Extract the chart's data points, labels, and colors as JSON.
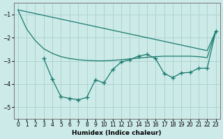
{
  "xlabel": "Humidex (Indice chaleur)",
  "bg_color": "#cceae8",
  "grid_color": "#aed4d0",
  "line_color": "#1a7a6e",
  "xlim": [
    -0.5,
    23.5
  ],
  "ylim": [
    -5.5,
    -0.5
  ],
  "yticks": [
    -5,
    -4,
    -3,
    -2,
    -1
  ],
  "xticks": [
    0,
    1,
    2,
    3,
    4,
    5,
    6,
    7,
    8,
    9,
    10,
    11,
    12,
    13,
    14,
    15,
    16,
    17,
    18,
    19,
    20,
    21,
    22,
    23
  ],
  "line_straight_x": [
    0,
    1,
    2,
    3,
    4,
    5,
    6,
    7,
    8,
    9,
    10,
    11,
    12,
    13,
    14,
    15,
    16,
    17,
    18,
    19,
    20,
    21,
    22,
    23
  ],
  "line_smooth_x": [
    0,
    1,
    2,
    3,
    4,
    5,
    6,
    7,
    8,
    9,
    10,
    11,
    12,
    13,
    14,
    15,
    16,
    17,
    18,
    19,
    20,
    21,
    22,
    23
  ],
  "line_smooth_y": [
    -0.8,
    -1.62,
    -2.12,
    -2.48,
    -2.68,
    -2.82,
    -2.9,
    -2.95,
    -2.98,
    -3.0,
    -3.0,
    -2.98,
    -2.95,
    -2.92,
    -2.88,
    -2.85,
    -2.82,
    -2.8,
    -2.8,
    -2.8,
    -2.8,
    -2.82,
    -2.86,
    -1.72
  ],
  "line_jagged_x": [
    3,
    4,
    5,
    6,
    7,
    8,
    9,
    10,
    11,
    12,
    13,
    14,
    15,
    16,
    17,
    18,
    19,
    20,
    21,
    22,
    23
  ],
  "line_jagged_y": [
    -2.9,
    -3.8,
    -4.55,
    -4.62,
    -4.68,
    -4.58,
    -3.82,
    -3.95,
    -3.38,
    -3.05,
    -2.95,
    -2.8,
    -2.72,
    -2.9,
    -3.55,
    -3.72,
    -3.52,
    -3.5,
    -3.32,
    -3.32,
    -1.72
  ]
}
